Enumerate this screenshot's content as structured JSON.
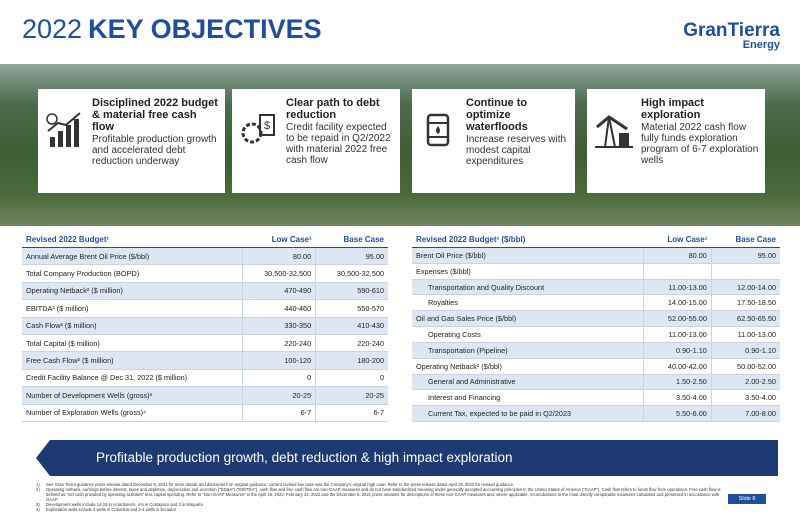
{
  "header": {
    "title_year": "2022",
    "title_main": "KEY OBJECTIVES",
    "logo_name": "GranTierra",
    "logo_sub": "Energy"
  },
  "cards": [
    {
      "title": "Disciplined 2022 budget & material free cash flow",
      "body": "Profitable production growth and accelerated debt reduction underway"
    },
    {
      "title": "Clear path to debt reduction",
      "body": "Credit facility expected to be repaid in Q2/2022 with material 2022 free cash flow"
    },
    {
      "title": "Continue to optimize waterfloods",
      "body": "Increase reserves with modest capital expenditures"
    },
    {
      "title": "High impact exploration",
      "body": "Material 2022 cash flow fully funds exploration program of 6-7 exploration wells"
    }
  ],
  "left_table": {
    "header": [
      "Revised 2022 Budget¹",
      "Low Case¹",
      "Base Case"
    ],
    "rows": [
      {
        "label": "Annual Average Brent Oil Price ($/bbl)",
        "low": "80.00",
        "base": "95.00"
      },
      {
        "label": "Total Company Production (BOPD)",
        "low": "30,500-32,500",
        "base": "30,500-32,500"
      },
      {
        "label": "Operating Netback² ($ million)",
        "low": "470-490",
        "base": "590-610"
      },
      {
        "label": "EBITDA² ($ million)",
        "low": "440-460",
        "base": "550-570"
      },
      {
        "label": "Cash Flow² ($ million)",
        "low": "330-350",
        "base": "410-430"
      },
      {
        "label": "Total Capital ($ million)",
        "low": "220-240",
        "base": "220-240"
      },
      {
        "label": "Free Cash Flow² ($ million)",
        "low": "100-120",
        "base": "180-200"
      },
      {
        "label": "Credit Facility Balance @ Dec 31, 2022 ($ million)",
        "low": "0",
        "base": "0"
      },
      {
        "label": "Number of Development Wells (gross)³",
        "low": "20-25",
        "base": "20-25"
      },
      {
        "label": "Number of Exploration Wells (gross)⁴",
        "low": "6-7",
        "base": "6-7"
      }
    ]
  },
  "right_table": {
    "header": [
      "Revised 2022 Budget¹ ($/bbl)",
      "Low Case¹",
      "Base Case"
    ],
    "rows": [
      {
        "label": "Brent Oil Price ($/bbl)",
        "low": "80.00",
        "base": "95.00"
      },
      {
        "label": "Expenses ($/bbl)"
      },
      {
        "label": "Transportation and Quality Discount",
        "low": "11.00-13.00",
        "base": "12.00-14.00",
        "indent": true
      },
      {
        "label": "Royalties",
        "low": "14.00-15.00",
        "base": "17.50-18.50",
        "indent": true
      },
      {
        "label": "Oil and Gas Sales Price ($/bbl)",
        "low": "52.00-55.00",
        "base": "62.50-65.50"
      },
      {
        "label": "Operating Costs",
        "low": "11.00-13.00",
        "base": "11.00-13.00",
        "indent": true
      },
      {
        "label": "Transportation (Pipeline)",
        "low": "0.90-1.10",
        "base": "0.90-1.10",
        "indent": true
      },
      {
        "label": "Operating Netback² ($/bbl)",
        "low": "40.00-42.00",
        "base": "50.00-52.00"
      },
      {
        "label": "General and Administrative",
        "low": "1.50-2.50",
        "base": "2.00-2.50",
        "indent": true
      },
      {
        "label": "Interest and Financing",
        "low": "3.50-4.00",
        "base": "3.50-4.00",
        "indent": true
      },
      {
        "label": "Current Tax, expected to be paid in Q2/2023",
        "low": "5.50-6.00",
        "base": "7.00-8.00",
        "indent": true
      }
    ]
  },
  "banner": "Profitable production growth, debt reduction & high impact exploration",
  "footnotes": [
    {
      "marker": "1)",
      "text": "See Gran Tierra guidance press release dated December 6, 2021 for more details and disclaimers on original guidance; current revised low case was the Company's original high case. Refer to the press release dated April 19, 2022 for revised guidance."
    },
    {
      "marker": "2)",
      "text": "Operating netback, earnings before interest, taxes and depletion, depreciation and accretion (\"DD&A\") (\"EBITDA\"), cash flow and free cash flow are non-GAAP measures and do not have standardized meaning under generally accepted accounting principles in the United States of America (\"GAAP\"). Cash flow refers to funds flow from operations. Free cash flow is defined as \"net cash provided by operating activities\" less capital spending. Refer to \"Non-GAAP Measures\" in the April 19, 2022, February 22, 2022 and the December 6, 2021 press releases for descriptions of these non-GAAP measures and, where applicable, reconciliations to the most directly comparable measures calculated and presented in accordance with GAAP."
    },
    {
      "marker": "3)",
      "text": "Development wells include 14-18 in Acordionero, 4-5 in Costayaco and 3 in Moqueta"
    },
    {
      "marker": "4)",
      "text": "Exploration wells include 4 wells in Colombia and 2-4 wells in Ecuador"
    }
  ],
  "slide_number": "Slide 8"
}
